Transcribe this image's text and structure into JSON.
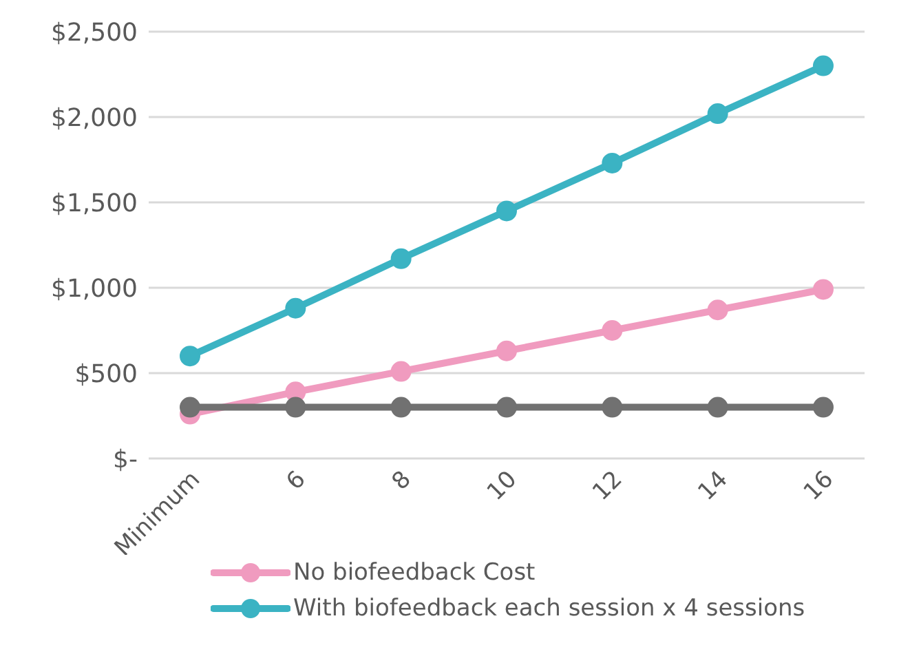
{
  "chart_data": {
    "type": "line",
    "categories": [
      "Minimum",
      "6",
      "8",
      "10",
      "12",
      "14",
      "16"
    ],
    "series": [
      {
        "name": "No biofeedback Cost",
        "color": "#f09bbf",
        "values": [
          260,
          390,
          510,
          630,
          750,
          870,
          990
        ]
      },
      {
        "name": "With biofeedback each session x 4 sessions",
        "color": "#3bb3c3",
        "values": [
          600,
          880,
          1170,
          1450,
          1730,
          2020,
          2300
        ]
      },
      {
        "color": "#717171",
        "values": [
          300,
          300,
          300,
          300,
          300,
          300,
          300
        ]
      }
    ],
    "ylim": [
      0,
      2500
    ],
    "yticks": [
      {
        "value": 0,
        "label": "$-"
      },
      {
        "value": 500,
        "label": "$500"
      },
      {
        "value": 1000,
        "label": "$1,000"
      },
      {
        "value": 1500,
        "label": "$1,500"
      },
      {
        "value": 2000,
        "label": "$2,000"
      },
      {
        "value": 2500,
        "label": "$2,500"
      }
    ],
    "grid": "y",
    "legend": "bottom",
    "marker": "circle",
    "line_style": "solid"
  }
}
